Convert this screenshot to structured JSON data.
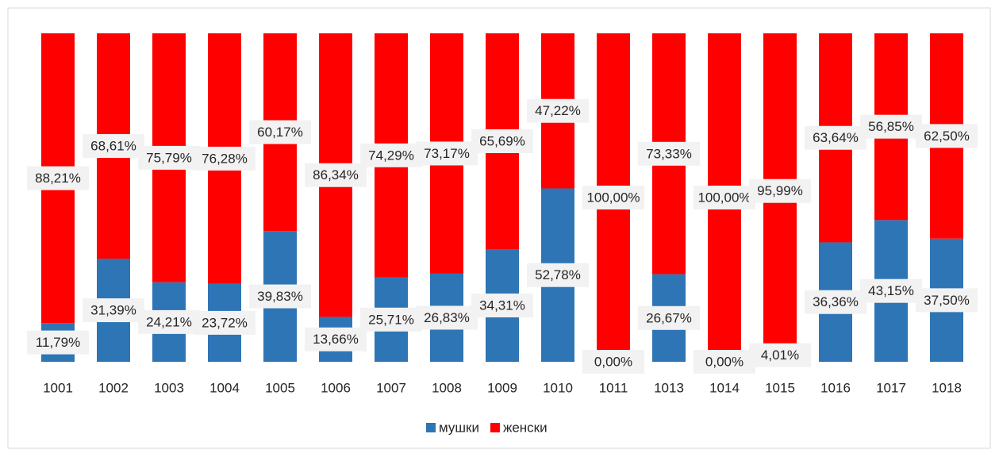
{
  "chart_data": {
    "type": "stacked_bar_100",
    "categories": [
      "1001",
      "1002",
      "1003",
      "1004",
      "1005",
      "1006",
      "1007",
      "1008",
      "1009",
      "1010",
      "1011",
      "1013",
      "1014",
      "1015",
      "1016",
      "1017",
      "1018"
    ],
    "ylim": [
      0,
      100
    ],
    "legend": "bottom",
    "series": [
      {
        "name": "мушки",
        "color": "#2e75b6",
        "values": [
          11.79,
          31.39,
          24.21,
          23.72,
          39.83,
          13.66,
          25.71,
          26.83,
          34.31,
          52.78,
          0.0,
          26.67,
          0.0,
          4.01,
          36.36,
          43.15,
          37.5
        ],
        "value_labels": [
          "11,79%",
          "31,39%",
          "24,21%",
          "23,72%",
          "39,83%",
          "13,66%",
          "25,71%",
          "26,83%",
          "34,31%",
          "52,78%",
          "0,00%",
          "26,67%",
          "0,00%",
          "4,01%",
          "36,36%",
          "43,15%",
          "37,50%"
        ]
      },
      {
        "name": "женски",
        "color": "#ff0000",
        "values": [
          88.21,
          68.61,
          75.79,
          76.28,
          60.17,
          86.34,
          74.29,
          73.17,
          65.69,
          47.22,
          100.0,
          73.33,
          100.0,
          95.99,
          63.64,
          56.85,
          62.5
        ],
        "value_labels": [
          "88,21%",
          "68,61%",
          "75,79%",
          "76,28%",
          "60,17%",
          "86,34%",
          "74,29%",
          "73,17%",
          "65,69%",
          "47,22%",
          "100,00%",
          "73,33%",
          "100,00%",
          "95,99%",
          "63,64%",
          "56,85%",
          "62,50%"
        ]
      }
    ]
  }
}
